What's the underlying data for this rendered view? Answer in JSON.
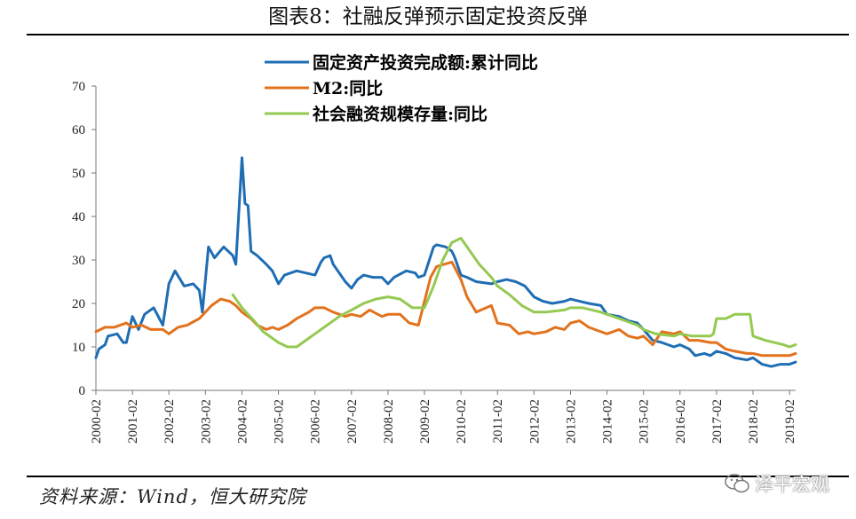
{
  "title": "图表8：社融反弹预示固定投资反弹",
  "source": "资料来源：Wind，恒大研究院",
  "watermark": "泽平宏观",
  "watermark_icon": "wechat-bubble-icon",
  "chart_data": {
    "type": "line",
    "title": "图表8：社融反弹预示固定投资反弹",
    "xlabel": "",
    "ylabel": "",
    "ylim": [
      0,
      70
    ],
    "yticks": [
      0,
      10,
      20,
      30,
      40,
      50,
      60,
      70
    ],
    "xlim": [
      "2000-02",
      "2019-04"
    ],
    "xticks": [
      "2000-02",
      "2001-02",
      "2002-02",
      "2003-02",
      "2004-02",
      "2005-02",
      "2006-02",
      "2007-02",
      "2008-02",
      "2009-02",
      "2010-02",
      "2011-02",
      "2012-02",
      "2013-02",
      "2014-02",
      "2015-02",
      "2016-02",
      "2017-02",
      "2018-02",
      "2019-02"
    ],
    "grid": false,
    "legend_position": "top",
    "series": [
      {
        "name": "固定资产投资完成额:累计同比",
        "color": "#1f6db3",
        "points": [
          [
            "2000-02",
            7.5
          ],
          [
            "2000-03",
            9.5
          ],
          [
            "2000-05",
            10.5
          ],
          [
            "2000-06",
            12.5
          ],
          [
            "2000-09",
            13
          ],
          [
            "2000-11",
            11
          ],
          [
            "2000-12",
            11
          ],
          [
            "2001-02",
            17
          ],
          [
            "2001-04",
            14
          ],
          [
            "2001-06",
            17.5
          ],
          [
            "2001-09",
            19
          ],
          [
            "2001-12",
            15
          ],
          [
            "2002-02",
            24.5
          ],
          [
            "2002-04",
            27.5
          ],
          [
            "2002-07",
            24
          ],
          [
            "2002-10",
            24.5
          ],
          [
            "2002-12",
            23
          ],
          [
            "2003-01",
            18
          ],
          [
            "2003-03",
            33
          ],
          [
            "2003-05",
            30.5
          ],
          [
            "2003-08",
            33
          ],
          [
            "2003-11",
            31
          ],
          [
            "2003-12",
            29
          ],
          [
            "2004-02",
            53.5
          ],
          [
            "2004-03",
            43
          ],
          [
            "2004-04",
            42.5
          ],
          [
            "2004-05",
            32
          ],
          [
            "2004-07",
            31
          ],
          [
            "2004-10",
            29
          ],
          [
            "2004-12",
            27.5
          ],
          [
            "2005-02",
            24.5
          ],
          [
            "2005-04",
            26.5
          ],
          [
            "2005-08",
            27.5
          ],
          [
            "2005-11",
            27
          ],
          [
            "2006-02",
            26.5
          ],
          [
            "2006-04",
            29.5
          ],
          [
            "2006-05",
            30.5
          ],
          [
            "2006-07",
            31
          ],
          [
            "2006-08",
            29
          ],
          [
            "2006-10",
            27
          ],
          [
            "2006-12",
            25
          ],
          [
            "2007-02",
            23.5
          ],
          [
            "2007-04",
            25.5
          ],
          [
            "2007-06",
            26.5
          ],
          [
            "2007-09",
            26
          ],
          [
            "2007-12",
            26
          ],
          [
            "2008-02",
            24.5
          ],
          [
            "2008-04",
            26
          ],
          [
            "2008-08",
            27.5
          ],
          [
            "2008-11",
            27
          ],
          [
            "2008-12",
            26
          ],
          [
            "2009-02",
            26.5
          ],
          [
            "2009-05",
            33
          ],
          [
            "2009-06",
            33.5
          ],
          [
            "2009-09",
            33
          ],
          [
            "2009-11",
            32
          ],
          [
            "2009-12",
            30.5
          ],
          [
            "2010-02",
            26.5
          ],
          [
            "2010-04",
            26
          ],
          [
            "2010-07",
            25
          ],
          [
            "2010-12",
            24.5
          ],
          [
            "2011-02",
            25
          ],
          [
            "2011-05",
            25.5
          ],
          [
            "2011-08",
            25
          ],
          [
            "2011-11",
            24
          ],
          [
            "2012-02",
            21.5
          ],
          [
            "2012-05",
            20.5
          ],
          [
            "2012-08",
            20
          ],
          [
            "2012-12",
            20.5
          ],
          [
            "2013-02",
            21
          ],
          [
            "2013-05",
            20.5
          ],
          [
            "2013-08",
            20
          ],
          [
            "2013-12",
            19.5
          ],
          [
            "2014-02",
            17.5
          ],
          [
            "2014-06",
            17
          ],
          [
            "2014-09",
            16
          ],
          [
            "2014-12",
            15.5
          ],
          [
            "2015-02",
            14
          ],
          [
            "2015-05",
            11.5
          ],
          [
            "2015-08",
            11
          ],
          [
            "2015-12",
            10
          ],
          [
            "2016-02",
            10.5
          ],
          [
            "2016-05",
            9.5
          ],
          [
            "2016-07",
            8
          ],
          [
            "2016-10",
            8.5
          ],
          [
            "2016-12",
            8
          ],
          [
            "2017-02",
            9
          ],
          [
            "2017-05",
            8.5
          ],
          [
            "2017-08",
            7.5
          ],
          [
            "2017-12",
            7
          ],
          [
            "2018-02",
            7.5
          ],
          [
            "2018-05",
            6
          ],
          [
            "2018-08",
            5.5
          ],
          [
            "2018-11",
            6
          ],
          [
            "2019-02",
            6
          ],
          [
            "2019-04",
            6.5
          ]
        ]
      },
      {
        "name": "M2:同比",
        "color": "#e2721e",
        "points": [
          [
            "2000-02",
            13.5
          ],
          [
            "2000-05",
            14.5
          ],
          [
            "2000-08",
            14.5
          ],
          [
            "2000-12",
            15.5
          ],
          [
            "2001-02",
            14.5
          ],
          [
            "2001-05",
            15
          ],
          [
            "2001-08",
            14
          ],
          [
            "2001-12",
            14
          ],
          [
            "2002-02",
            13
          ],
          [
            "2002-05",
            14.5
          ],
          [
            "2002-08",
            15
          ],
          [
            "2002-12",
            16.5
          ],
          [
            "2003-02",
            18
          ],
          [
            "2003-04",
            19.5
          ],
          [
            "2003-07",
            21
          ],
          [
            "2003-10",
            20.5
          ],
          [
            "2003-12",
            19.5
          ],
          [
            "2004-02",
            18
          ],
          [
            "2004-05",
            16.5
          ],
          [
            "2004-07",
            15
          ],
          [
            "2004-10",
            14
          ],
          [
            "2004-12",
            14.5
          ],
          [
            "2005-02",
            14
          ],
          [
            "2005-05",
            15
          ],
          [
            "2005-08",
            16.5
          ],
          [
            "2005-12",
            18
          ],
          [
            "2006-02",
            19
          ],
          [
            "2006-05",
            19
          ],
          [
            "2006-08",
            18
          ],
          [
            "2006-12",
            17
          ],
          [
            "2007-02",
            17.5
          ],
          [
            "2007-05",
            17
          ],
          [
            "2007-08",
            18.5
          ],
          [
            "2007-12",
            17
          ],
          [
            "2008-02",
            17.5
          ],
          [
            "2008-06",
            17.5
          ],
          [
            "2008-09",
            15.5
          ],
          [
            "2008-12",
            15
          ],
          [
            "2009-02",
            20.5
          ],
          [
            "2009-04",
            26
          ],
          [
            "2009-06",
            28.5
          ],
          [
            "2009-11",
            29.5
          ],
          [
            "2010-02",
            25.5
          ],
          [
            "2010-04",
            21.5
          ],
          [
            "2010-07",
            18
          ],
          [
            "2010-12",
            19.5
          ],
          [
            "2011-02",
            15.5
          ],
          [
            "2011-06",
            15
          ],
          [
            "2011-09",
            13
          ],
          [
            "2011-12",
            13.5
          ],
          [
            "2012-02",
            13
          ],
          [
            "2012-06",
            13.5
          ],
          [
            "2012-09",
            14.5
          ],
          [
            "2012-12",
            14
          ],
          [
            "2013-02",
            15.5
          ],
          [
            "2013-05",
            16
          ],
          [
            "2013-08",
            14.5
          ],
          [
            "2013-12",
            13.5
          ],
          [
            "2014-02",
            13
          ],
          [
            "2014-06",
            14
          ],
          [
            "2014-09",
            12.5
          ],
          [
            "2014-12",
            12
          ],
          [
            "2015-02",
            12.5
          ],
          [
            "2015-05",
            10.5
          ],
          [
            "2015-08",
            13.5
          ],
          [
            "2015-12",
            13
          ],
          [
            "2016-02",
            13.5
          ],
          [
            "2016-05",
            11.5
          ],
          [
            "2016-08",
            11.5
          ],
          [
            "2016-12",
            11
          ],
          [
            "2017-02",
            11
          ],
          [
            "2017-05",
            9.5
          ],
          [
            "2017-08",
            9
          ],
          [
            "2017-12",
            8.5
          ],
          [
            "2018-02",
            8.5
          ],
          [
            "2018-05",
            8
          ],
          [
            "2018-08",
            8
          ],
          [
            "2018-12",
            8
          ],
          [
            "2019-02",
            8
          ],
          [
            "2019-04",
            8.5
          ]
        ]
      },
      {
        "name": "社会融资规模存量:同比",
        "color": "#94c952",
        "points": [
          [
            "2003-11",
            22
          ],
          [
            "2004-02",
            19
          ],
          [
            "2004-06",
            16
          ],
          [
            "2004-09",
            13.5
          ],
          [
            "2005-02",
            11
          ],
          [
            "2005-05",
            10
          ],
          [
            "2005-08",
            10
          ],
          [
            "2005-11",
            11.5
          ],
          [
            "2006-02",
            13
          ],
          [
            "2006-06",
            15
          ],
          [
            "2006-10",
            17
          ],
          [
            "2007-02",
            18.5
          ],
          [
            "2007-06",
            20
          ],
          [
            "2007-10",
            21
          ],
          [
            "2008-02",
            21.5
          ],
          [
            "2008-06",
            21
          ],
          [
            "2008-10",
            19
          ],
          [
            "2009-02",
            19
          ],
          [
            "2009-05",
            24
          ],
          [
            "2009-08",
            30
          ],
          [
            "2009-11",
            34
          ],
          [
            "2010-02",
            35
          ],
          [
            "2010-05",
            32
          ],
          [
            "2010-08",
            29
          ],
          [
            "2010-12",
            26
          ],
          [
            "2011-02",
            24
          ],
          [
            "2011-06",
            22
          ],
          [
            "2011-10",
            19.5
          ],
          [
            "2012-02",
            18
          ],
          [
            "2012-06",
            18
          ],
          [
            "2012-12",
            18.5
          ],
          [
            "2013-02",
            19
          ],
          [
            "2013-06",
            19
          ],
          [
            "2013-12",
            18
          ],
          [
            "2014-02",
            17.5
          ],
          [
            "2014-06",
            16.5
          ],
          [
            "2014-12",
            15
          ],
          [
            "2015-02",
            14
          ],
          [
            "2015-06",
            13
          ],
          [
            "2015-12",
            12.5
          ],
          [
            "2016-02",
            13
          ],
          [
            "2016-06",
            12.5
          ],
          [
            "2016-12",
            12.5
          ],
          [
            "2017-01",
            13
          ],
          [
            "2017-02",
            16.5
          ],
          [
            "2017-05",
            16.5
          ],
          [
            "2017-08",
            17.5
          ],
          [
            "2017-12",
            17.5
          ],
          [
            "2018-01",
            17.5
          ],
          [
            "2018-02",
            12.5
          ],
          [
            "2018-06",
            11.5
          ],
          [
            "2018-12",
            10.5
          ],
          [
            "2019-02",
            10
          ],
          [
            "2019-04",
            10.5
          ]
        ]
      }
    ]
  }
}
